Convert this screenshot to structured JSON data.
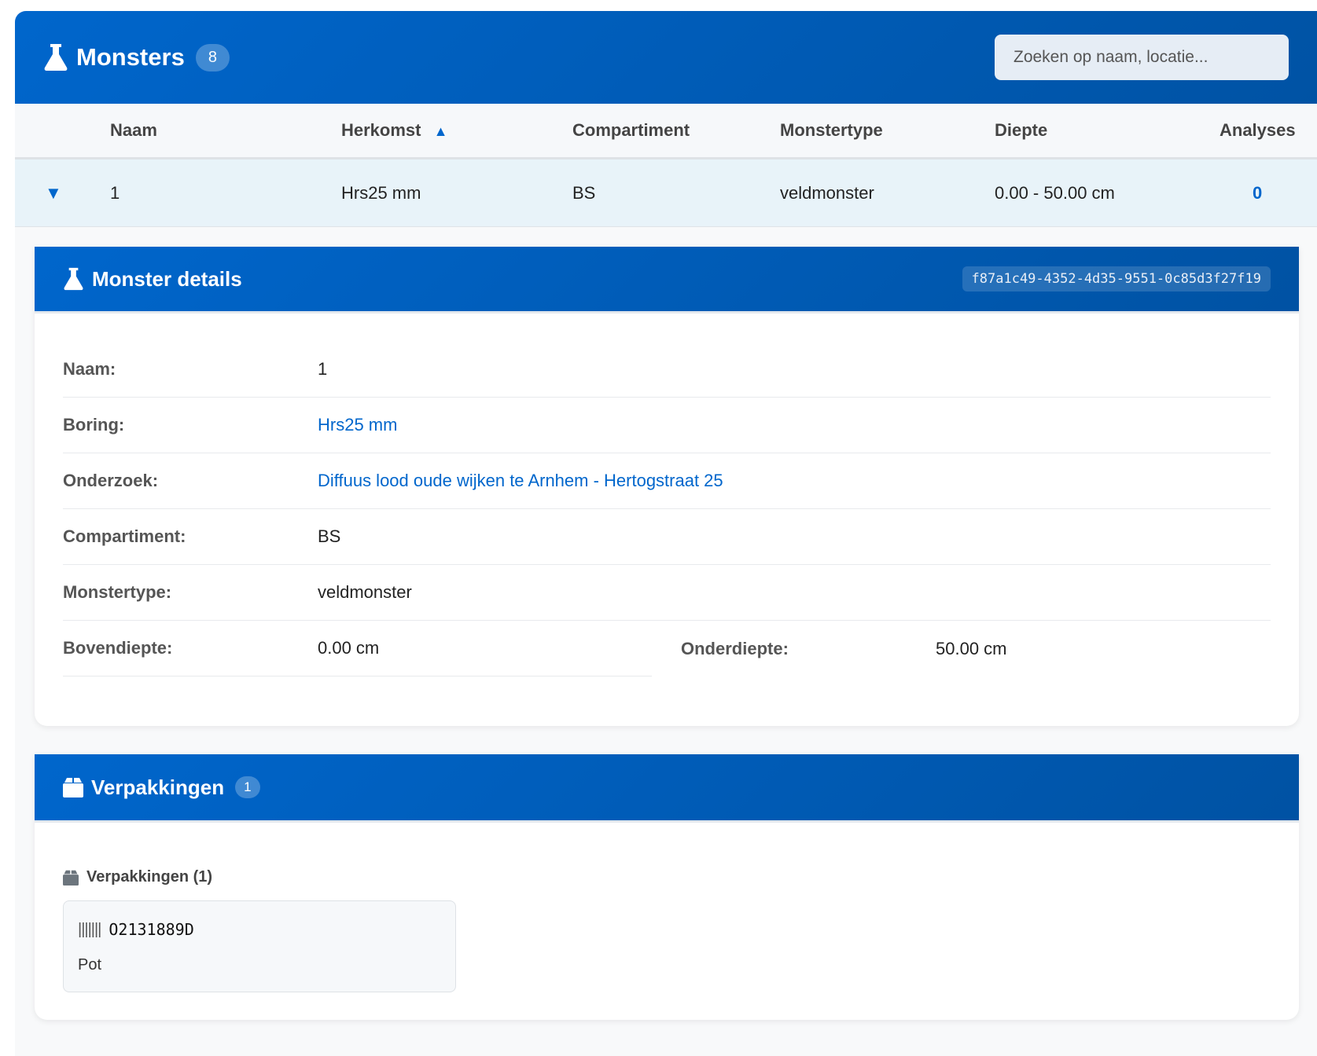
{
  "header": {
    "title": "Monsters",
    "count": "8",
    "search_placeholder": "Zoeken op naam, locatie..."
  },
  "table": {
    "columns": [
      "Naam",
      "Herkomst",
      "Compartiment",
      "Monstertype",
      "Diepte",
      "Analyses"
    ],
    "sort_indicator": "▲",
    "rows": [
      {
        "expand": "▼",
        "naam": "1",
        "herkomst": "Hrs25 mm",
        "compartiment": "BS",
        "monstertype": "veldmonster",
        "diepte": "0.00 - 50.00 cm",
        "analyses": "0"
      }
    ]
  },
  "details": {
    "title": "Monster details",
    "uuid": "f87a1c49-4352-4d35-9551-0c85d3f27f19",
    "fields": [
      {
        "label": "Naam:",
        "value": "1"
      },
      {
        "label": "Boring:",
        "value": "Hrs25 mm"
      },
      {
        "label": "Onderzoek:",
        "value": "Diffuus lood oude wijken te Arnhem - Hertogstraat 25"
      },
      {
        "label": "Compartiment:",
        "value": "BS"
      },
      {
        "label": "Monstertype:",
        "value": "veldmonster"
      },
      {
        "label": "Bovendiepte:",
        "value": "0.00 cm"
      },
      {
        "label": "Onderdiepte:",
        "value": "50.00 cm"
      }
    ]
  },
  "packaging": {
    "title": "Verpakkingen",
    "count": "1",
    "subtitle": "Verpakkingen (1)",
    "items": [
      {
        "code": "O2131889D",
        "type": "Pot"
      }
    ]
  },
  "colors": {
    "primary": "#0066cc",
    "row_highlight": "#e8f3f9"
  }
}
